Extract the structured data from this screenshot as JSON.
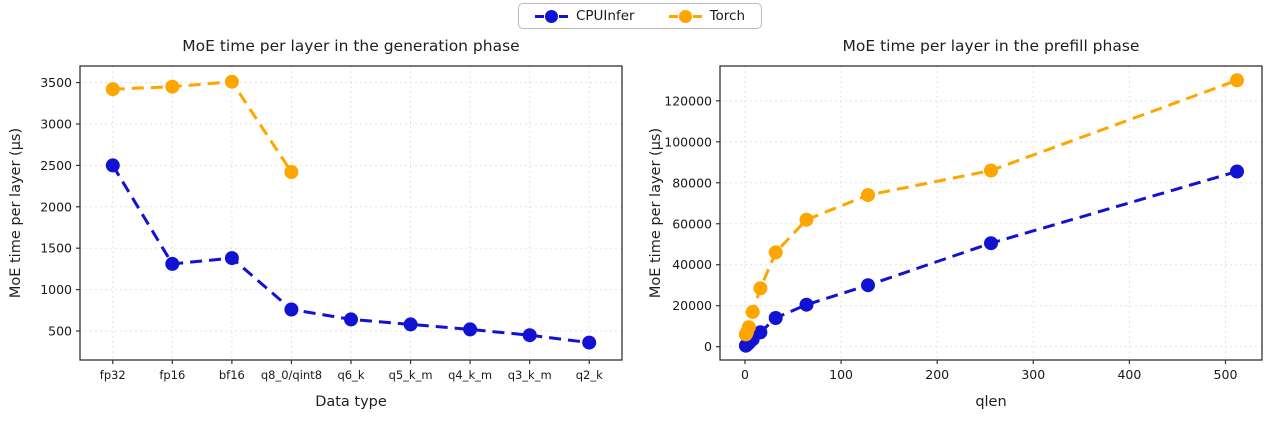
{
  "legend": {
    "items": [
      {
        "label": "CPUInfer",
        "color": "#1212d2"
      },
      {
        "label": "Torch",
        "color": "#ffa500"
      }
    ]
  },
  "chart_data": [
    {
      "type": "line",
      "title": "MoE time per layer in the generation phase",
      "xlabel": "Data type",
      "ylabel": "MoE time per layer (µs)",
      "categories": [
        "fp32",
        "fp16",
        "bf16",
        "q8_0/qint8",
        "q6_k",
        "q5_k_m",
        "q4_k_m",
        "q3_k_m",
        "q2_k"
      ],
      "yticks": [
        500,
        1000,
        1500,
        2000,
        2500,
        3000,
        3500
      ],
      "ylim": [
        150,
        3700
      ],
      "grid": true,
      "line_style": "dashed",
      "legend_position": "top-center-shared",
      "series": [
        {
          "name": "CPUInfer",
          "color": "#1212d2",
          "values": [
            2500,
            1310,
            1380,
            760,
            640,
            580,
            520,
            450,
            360
          ]
        },
        {
          "name": "Torch",
          "color": "#ffa500",
          "values": [
            3420,
            3450,
            3510,
            2420,
            null,
            null,
            null,
            null,
            null
          ]
        }
      ]
    },
    {
      "type": "line",
      "title": "MoE time per layer in the prefill phase",
      "xlabel": "qlen",
      "ylabel": "MoE time per layer (µs)",
      "x": [
        1,
        2,
        4,
        8,
        16,
        32,
        64,
        128,
        256,
        512
      ],
      "xlim": [
        -26,
        538
      ],
      "xticks": [
        0,
        100,
        200,
        300,
        400,
        500
      ],
      "yticks": [
        0,
        20000,
        40000,
        60000,
        80000,
        100000,
        120000
      ],
      "ylim": [
        -6500,
        137000
      ],
      "grid": true,
      "line_style": "dashed",
      "legend_position": "top-center-shared",
      "series": [
        {
          "name": "CPUInfer",
          "color": "#1212d2",
          "values": [
            500,
            900,
            1800,
            3600,
            7000,
            14000,
            20500,
            30000,
            50500,
            85500
          ]
        },
        {
          "name": "Torch",
          "color": "#ffa500",
          "values": [
            6000,
            7000,
            9500,
            17000,
            28500,
            46000,
            62000,
            74000,
            86000,
            130000
          ]
        }
      ]
    }
  ]
}
